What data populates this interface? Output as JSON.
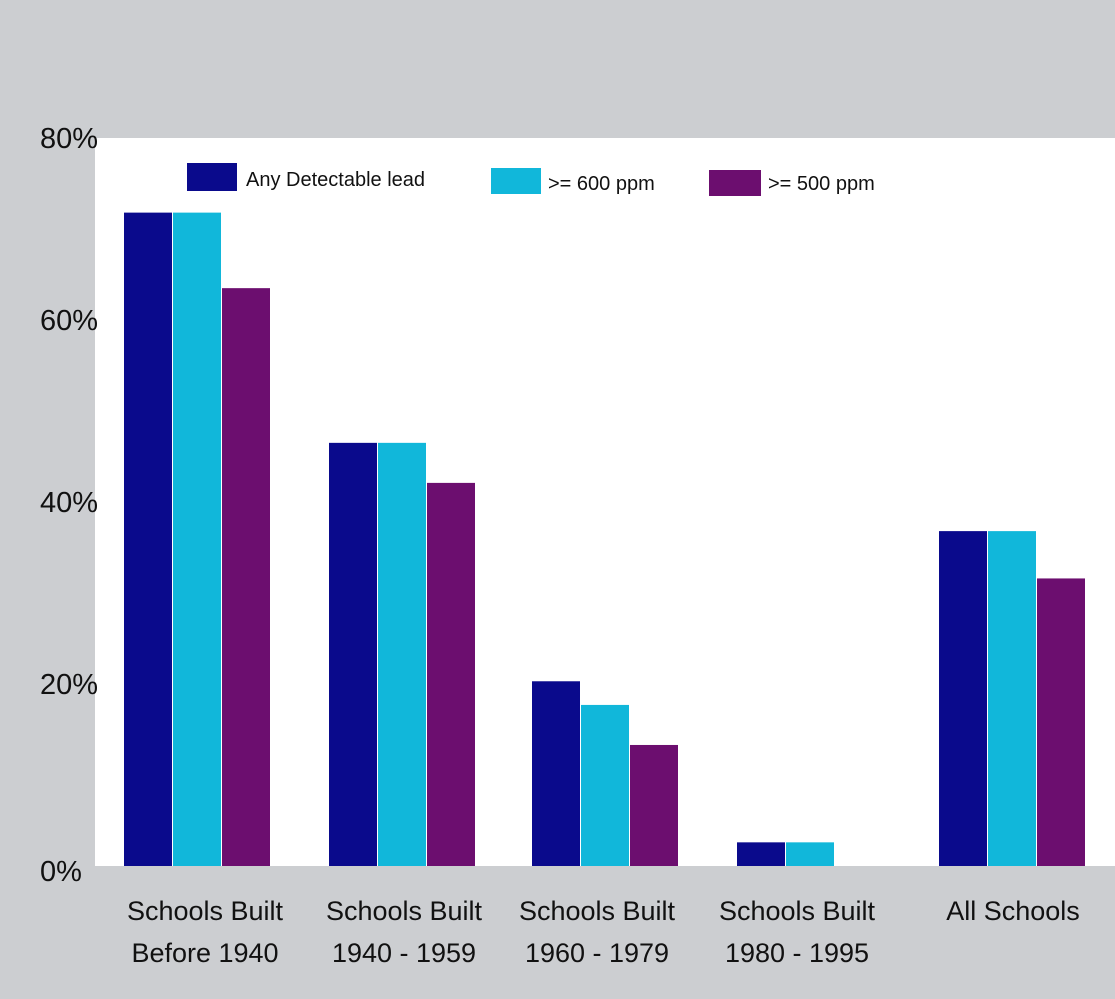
{
  "chart_data": {
    "type": "bar",
    "title": "",
    "xlabel": "",
    "ylabel": "",
    "ylim": [
      0,
      80
    ],
    "yticks": [
      0,
      20,
      40,
      60,
      80
    ],
    "ytick_labels": [
      "0%",
      "20%",
      "40%",
      "60%",
      "80%"
    ],
    "categories": [
      [
        "Schools Built",
        "Before 1940"
      ],
      [
        "Schools Built",
        "1940 - 1959"
      ],
      [
        "Schools Built",
        "1960 - 1979"
      ],
      [
        "Schools Built",
        "1980 - 1995"
      ],
      [
        "All Schools"
      ]
    ],
    "series": [
      {
        "name": "Any Detectable lead",
        "color": "#0a0a8c",
        "values": [
          71.8,
          46.5,
          20.3,
          2.6,
          36.8
        ]
      },
      {
        "name": ">= 600 ppm",
        "color": "#11b7da",
        "values": [
          71.8,
          46.5,
          17.7,
          2.6,
          36.8
        ]
      },
      {
        "name": ">= 500 ppm",
        "color": "#6c0e6f",
        "values": [
          63.5,
          42.1,
          13.3,
          0,
          31.6
        ]
      }
    ],
    "legend_position": "top",
    "grid": false
  },
  "colors": {
    "background": "#ccced1",
    "plot_background": "#ffffff"
  }
}
